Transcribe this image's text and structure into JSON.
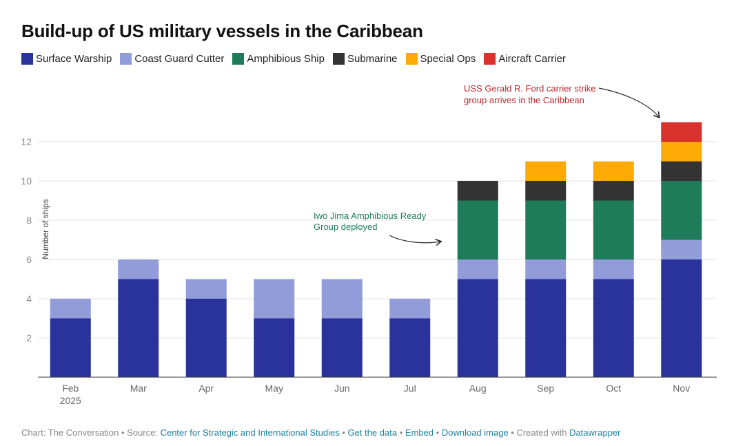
{
  "title": "Build-up of US military vessels in the Caribbean",
  "legend": [
    {
      "label": "Surface Warship",
      "color": "#29339b"
    },
    {
      "label": "Coast Guard Cutter",
      "color": "#919cd9"
    },
    {
      "label": "Amphibious Ship",
      "color": "#1f7c5a"
    },
    {
      "label": "Submarine",
      "color": "#333333"
    },
    {
      "label": "Special Ops",
      "color": "#fdaa06"
    },
    {
      "label": "Aircraft Carrier",
      "color": "#d9312b"
    }
  ],
  "annotations": {
    "ford": {
      "line1": "USS Gerald R. Ford carrier strike",
      "line2": "group arrives in the Caribbean",
      "color": "#c0272d"
    },
    "iwo": {
      "line1": "Iwo Jima Amphibious Ready",
      "line2": "Group deployed",
      "color": "#1f7c5a"
    }
  },
  "footer": {
    "prefix": "Chart: The Conversation • Source: ",
    "source": "Center for Strategic and International Studies",
    "sep1": " • ",
    "get_data": "Get the data",
    "sep2": " • ",
    "embed": "Embed",
    "sep3": "  • ",
    "download": "Download image",
    "sep4": " • Created with ",
    "datawrapper": "Datawrapper"
  },
  "chart_data": {
    "type": "bar",
    "stacked": true,
    "categories": [
      "Feb\n2025",
      "Mar",
      "Apr",
      "May",
      "Jun",
      "Jul",
      "Aug",
      "Sep",
      "Oct",
      "Nov"
    ],
    "series": [
      {
        "name": "Surface Warship",
        "color": "#29339b",
        "values": [
          3,
          5,
          4,
          3,
          3,
          3,
          5,
          5,
          5,
          6
        ]
      },
      {
        "name": "Coast Guard Cutter",
        "color": "#919cd9",
        "values": [
          1,
          1,
          1,
          2,
          2,
          1,
          1,
          1,
          1,
          1
        ]
      },
      {
        "name": "Amphibious Ship",
        "color": "#1f7c5a",
        "values": [
          0,
          0,
          0,
          0,
          0,
          0,
          3,
          3,
          3,
          3
        ]
      },
      {
        "name": "Submarine",
        "color": "#333333",
        "values": [
          0,
          0,
          0,
          0,
          0,
          0,
          1,
          1,
          1,
          1
        ]
      },
      {
        "name": "Special Ops",
        "color": "#fdaa06",
        "values": [
          0,
          0,
          0,
          0,
          0,
          0,
          0,
          1,
          1,
          1
        ]
      },
      {
        "name": "Aircraft Carrier",
        "color": "#d9312b",
        "values": [
          0,
          0,
          0,
          0,
          0,
          0,
          0,
          0,
          0,
          1
        ]
      }
    ],
    "ylabel": "Number of ships",
    "xlabel": "",
    "ylim": [
      0,
      13
    ],
    "yticks": [
      2,
      4,
      6,
      8,
      10,
      12
    ],
    "grid": true,
    "legend_position": "top-left"
  }
}
